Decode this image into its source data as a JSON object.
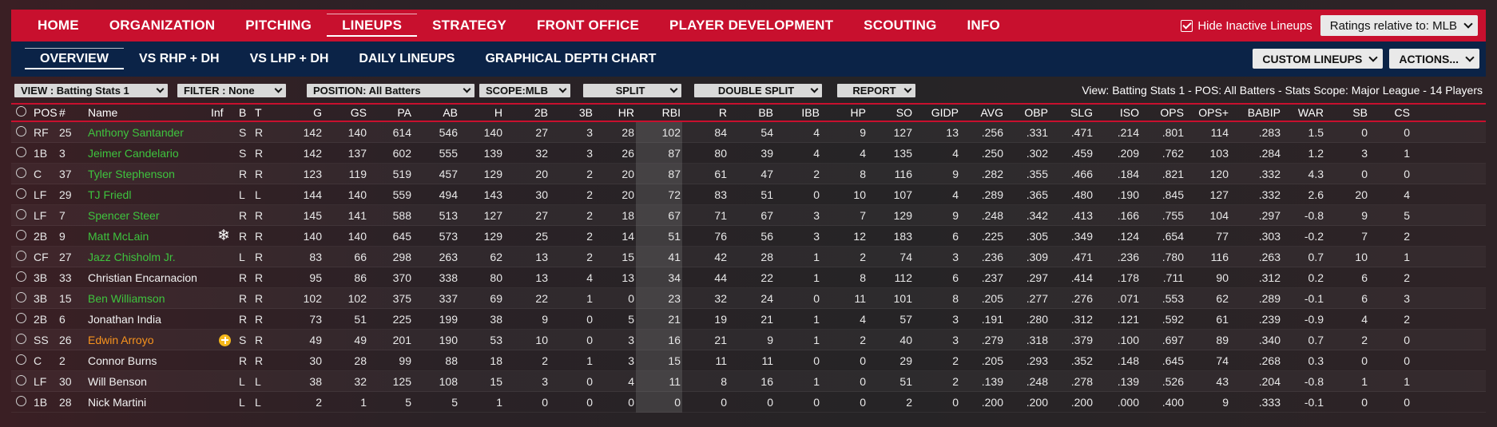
{
  "topnav": {
    "tabs": [
      "HOME",
      "ORGANIZATION",
      "PITCHING",
      "LINEUPS",
      "STRATEGY",
      "FRONT OFFICE",
      "PLAYER DEVELOPMENT",
      "SCOUTING",
      "INFO"
    ],
    "active": "LINEUPS",
    "hide_inactive_label": "Hide Inactive Lineups",
    "ratings_label": "Ratings relative to: MLB"
  },
  "subnav": {
    "tabs": [
      "OVERVIEW",
      "VS RHP + DH",
      "VS LHP + DH",
      "DAILY LINEUPS",
      "GRAPHICAL DEPTH CHART"
    ],
    "active": "OVERVIEW",
    "custom_lineups": "CUSTOM LINEUPS",
    "actions": "ACTIONS..."
  },
  "filters": {
    "view": "VIEW : Batting Stats 1",
    "filter": "FILTER : None",
    "position": "POSITION: All Batters",
    "scope": "SCOPE:MLB",
    "split": "SPLIT",
    "double_split": "DOUBLE SPLIT",
    "report": "REPORT",
    "view_info": "View: Batting Stats 1 - POS: All Batters - Stats Scope: Major League - 14 Players"
  },
  "columns": [
    "POS",
    "#",
    "Name",
    "Inf",
    "B",
    "T",
    "G",
    "GS",
    "PA",
    "AB",
    "H",
    "2B",
    "3B",
    "HR",
    "RBI",
    "R",
    "BB",
    "IBB",
    "HP",
    "SO",
    "GIDP",
    "AVG",
    "OBP",
    "SLG",
    "ISO",
    "OPS",
    "OPS+",
    "BABIP",
    "WAR",
    "SB",
    "CS"
  ],
  "colors": {
    "green": "#3ec43e",
    "orange": "#f7931e",
    "white": "#f2f2f2"
  },
  "players": [
    {
      "pos": "RF",
      "num": "25",
      "name": "Anthony Santander",
      "color": "green",
      "inf": "",
      "b": "S",
      "t": "R",
      "g": "142",
      "gs": "140",
      "pa": "614",
      "ab": "546",
      "h": "140",
      "d": "27",
      "tr": "3",
      "hr": "28",
      "rbi": "102",
      "r": "84",
      "bb": "54",
      "ibb": "4",
      "hp": "9",
      "so": "127",
      "gidp": "13",
      "avg": ".256",
      "obp": ".331",
      "slg": ".471",
      "iso": ".214",
      "ops": ".801",
      "opsp": "114",
      "babip": ".283",
      "war": "1.5",
      "sb": "0",
      "cs": "0"
    },
    {
      "pos": "1B",
      "num": "3",
      "name": "Jeimer Candelario",
      "color": "green",
      "inf": "",
      "b": "S",
      "t": "R",
      "g": "142",
      "gs": "137",
      "pa": "602",
      "ab": "555",
      "h": "139",
      "d": "32",
      "tr": "3",
      "hr": "26",
      "rbi": "87",
      "r": "80",
      "bb": "39",
      "ibb": "4",
      "hp": "4",
      "so": "135",
      "gidp": "4",
      "avg": ".250",
      "obp": ".302",
      "slg": ".459",
      "iso": ".209",
      "ops": ".762",
      "opsp": "103",
      "babip": ".284",
      "war": "1.2",
      "sb": "3",
      "cs": "1"
    },
    {
      "pos": "C",
      "num": "37",
      "name": "Tyler Stephenson",
      "color": "green",
      "inf": "",
      "b": "R",
      "t": "R",
      "g": "123",
      "gs": "119",
      "pa": "519",
      "ab": "457",
      "h": "129",
      "d": "20",
      "tr": "2",
      "hr": "20",
      "rbi": "87",
      "r": "61",
      "bb": "47",
      "ibb": "2",
      "hp": "8",
      "so": "116",
      "gidp": "9",
      "avg": ".282",
      "obp": ".355",
      "slg": ".466",
      "iso": ".184",
      "ops": ".821",
      "opsp": "120",
      "babip": ".332",
      "war": "4.3",
      "sb": "0",
      "cs": "0"
    },
    {
      "pos": "LF",
      "num": "29",
      "name": "TJ Friedl",
      "color": "green",
      "inf": "",
      "b": "L",
      "t": "L",
      "g": "144",
      "gs": "140",
      "pa": "559",
      "ab": "494",
      "h": "143",
      "d": "30",
      "tr": "2",
      "hr": "20",
      "rbi": "72",
      "r": "83",
      "bb": "51",
      "ibb": "0",
      "hp": "10",
      "so": "107",
      "gidp": "4",
      "avg": ".289",
      "obp": ".365",
      "slg": ".480",
      "iso": ".190",
      "ops": ".845",
      "opsp": "127",
      "babip": ".332",
      "war": "2.6",
      "sb": "20",
      "cs": "4"
    },
    {
      "pos": "LF",
      "num": "7",
      "name": "Spencer Steer",
      "color": "green",
      "inf": "",
      "b": "R",
      "t": "R",
      "g": "145",
      "gs": "141",
      "pa": "588",
      "ab": "513",
      "h": "127",
      "d": "27",
      "tr": "2",
      "hr": "18",
      "rbi": "67",
      "r": "71",
      "bb": "67",
      "ibb": "3",
      "hp": "7",
      "so": "129",
      "gidp": "9",
      "avg": ".248",
      "obp": ".342",
      "slg": ".413",
      "iso": ".166",
      "ops": ".755",
      "opsp": "104",
      "babip": ".297",
      "war": "-0.8",
      "sb": "9",
      "cs": "5"
    },
    {
      "pos": "2B",
      "num": "9",
      "name": "Matt McLain",
      "color": "green",
      "inf": "snow",
      "b": "R",
      "t": "R",
      "g": "140",
      "gs": "140",
      "pa": "645",
      "ab": "573",
      "h": "129",
      "d": "25",
      "tr": "2",
      "hr": "14",
      "rbi": "51",
      "r": "76",
      "bb": "56",
      "ibb": "3",
      "hp": "12",
      "so": "183",
      "gidp": "6",
      "avg": ".225",
      "obp": ".305",
      "slg": ".349",
      "iso": ".124",
      "ops": ".654",
      "opsp": "77",
      "babip": ".303",
      "war": "-0.2",
      "sb": "7",
      "cs": "2"
    },
    {
      "pos": "CF",
      "num": "27",
      "name": "Jazz Chisholm Jr.",
      "color": "green",
      "inf": "",
      "b": "L",
      "t": "R",
      "g": "83",
      "gs": "66",
      "pa": "298",
      "ab": "263",
      "h": "62",
      "d": "13",
      "tr": "2",
      "hr": "15",
      "rbi": "41",
      "r": "42",
      "bb": "28",
      "ibb": "1",
      "hp": "2",
      "so": "74",
      "gidp": "3",
      "avg": ".236",
      "obp": ".309",
      "slg": ".471",
      "iso": ".236",
      "ops": ".780",
      "opsp": "116",
      "babip": ".263",
      "war": "0.7",
      "sb": "10",
      "cs": "1"
    },
    {
      "pos": "3B",
      "num": "33",
      "name": "Christian Encarnacion",
      "color": "white",
      "inf": "",
      "b": "R",
      "t": "R",
      "g": "95",
      "gs": "86",
      "pa": "370",
      "ab": "338",
      "h": "80",
      "d": "13",
      "tr": "4",
      "hr": "13",
      "rbi": "34",
      "r": "44",
      "bb": "22",
      "ibb": "1",
      "hp": "8",
      "so": "112",
      "gidp": "6",
      "avg": ".237",
      "obp": ".297",
      "slg": ".414",
      "iso": ".178",
      "ops": ".711",
      "opsp": "90",
      "babip": ".312",
      "war": "0.2",
      "sb": "6",
      "cs": "2"
    },
    {
      "pos": "3B",
      "num": "15",
      "name": "Ben Williamson",
      "color": "green",
      "inf": "",
      "b": "R",
      "t": "R",
      "g": "102",
      "gs": "102",
      "pa": "375",
      "ab": "337",
      "h": "69",
      "d": "22",
      "tr": "1",
      "hr": "0",
      "rbi": "23",
      "r": "32",
      "bb": "24",
      "ibb": "0",
      "hp": "11",
      "so": "101",
      "gidp": "8",
      "avg": ".205",
      "obp": ".277",
      "slg": ".276",
      "iso": ".071",
      "ops": ".553",
      "opsp": "62",
      "babip": ".289",
      "war": "-0.1",
      "sb": "6",
      "cs": "3"
    },
    {
      "pos": "2B",
      "num": "6",
      "name": "Jonathan India",
      "color": "white",
      "inf": "",
      "b": "R",
      "t": "R",
      "g": "73",
      "gs": "51",
      "pa": "225",
      "ab": "199",
      "h": "38",
      "d": "9",
      "tr": "0",
      "hr": "5",
      "rbi": "21",
      "r": "19",
      "bb": "21",
      "ibb": "1",
      "hp": "4",
      "so": "57",
      "gidp": "3",
      "avg": ".191",
      "obp": ".280",
      "slg": ".312",
      "iso": ".121",
      "ops": ".592",
      "opsp": "61",
      "babip": ".239",
      "war": "-0.9",
      "sb": "4",
      "cs": "2"
    },
    {
      "pos": "SS",
      "num": "26",
      "name": "Edwin Arroyo",
      "color": "orange",
      "inf": "badge",
      "b": "S",
      "t": "R",
      "g": "49",
      "gs": "49",
      "pa": "201",
      "ab": "190",
      "h": "53",
      "d": "10",
      "tr": "0",
      "hr": "3",
      "rbi": "16",
      "r": "21",
      "bb": "9",
      "ibb": "1",
      "hp": "2",
      "so": "40",
      "gidp": "3",
      "avg": ".279",
      "obp": ".318",
      "slg": ".379",
      "iso": ".100",
      "ops": ".697",
      "opsp": "89",
      "babip": ".340",
      "war": "0.7",
      "sb": "2",
      "cs": "0"
    },
    {
      "pos": "C",
      "num": "2",
      "name": "Connor Burns",
      "color": "white",
      "inf": "",
      "b": "R",
      "t": "R",
      "g": "30",
      "gs": "28",
      "pa": "99",
      "ab": "88",
      "h": "18",
      "d": "2",
      "tr": "1",
      "hr": "3",
      "rbi": "15",
      "r": "11",
      "bb": "11",
      "ibb": "0",
      "hp": "0",
      "so": "29",
      "gidp": "2",
      "avg": ".205",
      "obp": ".293",
      "slg": ".352",
      "iso": ".148",
      "ops": ".645",
      "opsp": "74",
      "babip": ".268",
      "war": "0.3",
      "sb": "0",
      "cs": "0"
    },
    {
      "pos": "LF",
      "num": "30",
      "name": "Will Benson",
      "color": "white",
      "inf": "",
      "b": "L",
      "t": "L",
      "g": "38",
      "gs": "32",
      "pa": "125",
      "ab": "108",
      "h": "15",
      "d": "3",
      "tr": "0",
      "hr": "4",
      "rbi": "11",
      "r": "8",
      "bb": "16",
      "ibb": "1",
      "hp": "0",
      "so": "51",
      "gidp": "2",
      "avg": ".139",
      "obp": ".248",
      "slg": ".278",
      "iso": ".139",
      "ops": ".526",
      "opsp": "43",
      "babip": ".204",
      "war": "-0.8",
      "sb": "1",
      "cs": "1"
    },
    {
      "pos": "1B",
      "num": "28",
      "name": "Nick Martini",
      "color": "white",
      "inf": "",
      "b": "L",
      "t": "L",
      "g": "2",
      "gs": "1",
      "pa": "5",
      "ab": "5",
      "h": "1",
      "d": "0",
      "tr": "0",
      "hr": "0",
      "rbi": "0",
      "r": "0",
      "bb": "0",
      "ibb": "0",
      "hp": "0",
      "so": "2",
      "gidp": "0",
      "avg": ".200",
      "obp": ".200",
      "slg": ".200",
      "iso": ".000",
      "ops": ".400",
      "opsp": "9",
      "babip": ".333",
      "war": "-0.1",
      "sb": "0",
      "cs": "0"
    }
  ]
}
